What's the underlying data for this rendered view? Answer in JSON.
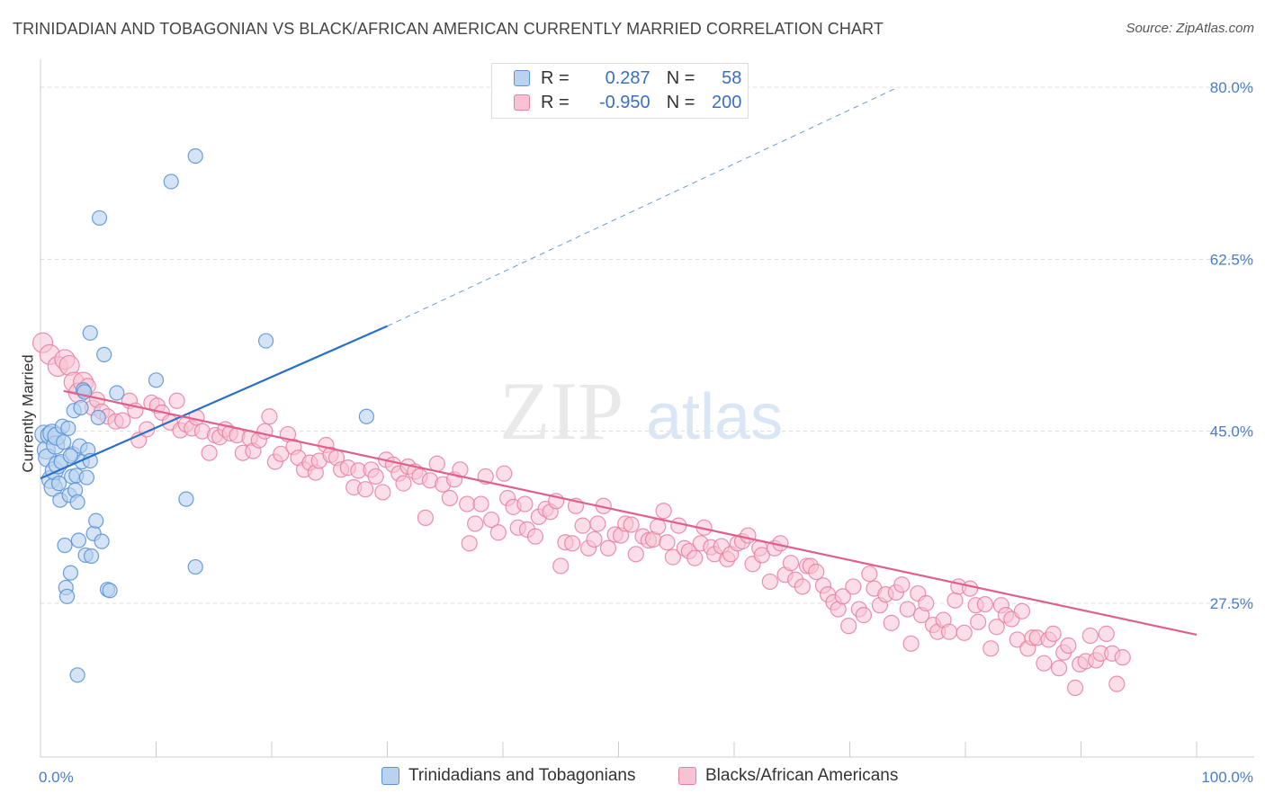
{
  "header": {
    "title": "TRINIDADIAN AND TOBAGONIAN VS BLACK/AFRICAN AMERICAN CURRENTLY MARRIED CORRELATION CHART",
    "source": "Source: ZipAtlas.com"
  },
  "watermark": {
    "part1": "ZIP",
    "part2": "atlas"
  },
  "legend": {
    "rows": [
      {
        "r_label": "R =",
        "r_value": "0.287",
        "n_label": "N =",
        "n_value": "58"
      },
      {
        "r_label": "R =",
        "r_value": "-0.950",
        "n_label": "N =",
        "n_value": "200"
      }
    ]
  },
  "colors": {
    "blue_fill": "#b8d2f0",
    "blue_stroke": "#5b93d6",
    "blue_line": "#2a6fc9",
    "pink_fill": "#f7c3d3",
    "pink_stroke": "#e87ea0",
    "pink_line": "#e0608c",
    "tick_text": "#4a7cc8",
    "grid": "#dcdcdc"
  },
  "chart_data": {
    "type": "scatter",
    "title": "TRINIDADIAN AND TOBAGONIAN VS BLACK/AFRICAN AMERICAN CURRENTLY MARRIED CORRELATION CHART",
    "xlabel": "",
    "ylabel": "Currently Married",
    "xlim": [
      0,
      100
    ],
    "ylim": [
      10,
      82
    ],
    "x_tick_labels": [
      "0.0%",
      "100.0%"
    ],
    "y_ticks": [
      27.5,
      45.0,
      62.5,
      80.0
    ],
    "y_tick_labels": [
      "27.5%",
      "45.0%",
      "62.5%",
      "80.0%"
    ],
    "grid": true,
    "legend_position": "top-center",
    "series": [
      {
        "name": "Trinidadians and Tobagonians",
        "r": 0.287,
        "n": 58,
        "trend": {
          "x0": 0,
          "y0": 40.2,
          "x1": 30,
          "y1": 55.7,
          "x_extend": 74,
          "y_extend": 79.9
        },
        "points": [
          [
            0.3,
            44.7
          ],
          [
            0.5,
            43.1
          ],
          [
            0.6,
            42.3
          ],
          [
            0.8,
            44.6
          ],
          [
            0.9,
            40.1
          ],
          [
            1.0,
            44.8
          ],
          [
            1.1,
            39.3
          ],
          [
            1.2,
            41.0
          ],
          [
            1.3,
            43.6
          ],
          [
            1.4,
            44.5
          ],
          [
            1.5,
            41.6
          ],
          [
            1.6,
            39.7
          ],
          [
            1.7,
            38.0
          ],
          [
            1.9,
            45.5
          ],
          [
            2.0,
            43.9
          ],
          [
            2.1,
            33.4
          ],
          [
            2.2,
            29.1
          ],
          [
            2.3,
            28.2
          ],
          [
            2.4,
            45.3
          ],
          [
            2.5,
            38.5
          ],
          [
            2.6,
            30.6
          ],
          [
            2.7,
            40.4
          ],
          [
            2.8,
            42.7
          ],
          [
            2.9,
            47.1
          ],
          [
            3.0,
            39.0
          ],
          [
            3.1,
            40.5
          ],
          [
            3.2,
            37.8
          ],
          [
            3.3,
            33.9
          ],
          [
            3.4,
            43.5
          ],
          [
            3.5,
            47.4
          ],
          [
            3.6,
            41.9
          ],
          [
            3.7,
            49.2
          ],
          [
            3.9,
            32.4
          ],
          [
            4.0,
            40.3
          ],
          [
            4.1,
            43.1
          ],
          [
            4.3,
            42.0
          ],
          [
            4.4,
            32.3
          ],
          [
            4.6,
            34.6
          ],
          [
            4.8,
            35.9
          ],
          [
            5.0,
            46.4
          ],
          [
            5.1,
            66.7
          ],
          [
            5.3,
            33.8
          ],
          [
            5.5,
            52.8
          ],
          [
            5.8,
            28.9
          ],
          [
            6.0,
            28.8
          ],
          [
            6.6,
            48.9
          ],
          [
            10.0,
            50.2
          ],
          [
            11.3,
            70.4
          ],
          [
            12.6,
            38.1
          ],
          [
            13.4,
            31.2
          ],
          [
            13.4,
            73.0
          ],
          [
            19.5,
            54.2
          ],
          [
            28.2,
            46.5
          ],
          [
            3.2,
            20.2
          ],
          [
            4.3,
            55.0
          ],
          [
            1.8,
            41.9
          ],
          [
            2.6,
            42.5
          ],
          [
            3.8,
            49.0
          ]
        ]
      },
      {
        "name": "Blacks/African Americans",
        "r": -0.95,
        "n": 200,
        "trend": {
          "x0": 2,
          "y0": 49.1,
          "x1": 100,
          "y1": 24.3
        },
        "points": [
          [
            0.2,
            54.0
          ],
          [
            0.8,
            52.8
          ],
          [
            1.5,
            51.6
          ],
          [
            2.1,
            52.3
          ],
          [
            2.5,
            51.7
          ],
          [
            2.9,
            50.0
          ],
          [
            3.3,
            48.9
          ],
          [
            3.7,
            50.0
          ],
          [
            4.1,
            49.6
          ],
          [
            4.5,
            47.4
          ],
          [
            4.9,
            48.2
          ],
          [
            5.3,
            47.0
          ],
          [
            5.8,
            46.5
          ],
          [
            6.5,
            46.0
          ],
          [
            7.1,
            46.1
          ],
          [
            7.7,
            48.1
          ],
          [
            8.2,
            47.1
          ],
          [
            8.5,
            44.1
          ],
          [
            9.2,
            45.2
          ],
          [
            9.6,
            47.9
          ],
          [
            10.1,
            47.6
          ],
          [
            10.5,
            46.9
          ],
          [
            11.2,
            45.9
          ],
          [
            11.8,
            48.1
          ],
          [
            12.1,
            45.1
          ],
          [
            12.6,
            45.7
          ],
          [
            13.1,
            45.3
          ],
          [
            13.5,
            46.4
          ],
          [
            14.0,
            45.0
          ],
          [
            14.6,
            42.8
          ],
          [
            15.1,
            44.6
          ],
          [
            15.5,
            44.4
          ],
          [
            16.0,
            45.2
          ],
          [
            16.4,
            44.8
          ],
          [
            17.0,
            44.6
          ],
          [
            17.5,
            42.8
          ],
          [
            18.1,
            44.3
          ],
          [
            18.4,
            43.0
          ],
          [
            18.9,
            44.1
          ],
          [
            19.4,
            45.0
          ],
          [
            19.8,
            46.5
          ],
          [
            20.3,
            41.9
          ],
          [
            20.8,
            42.7
          ],
          [
            21.4,
            44.7
          ],
          [
            21.9,
            43.4
          ],
          [
            22.3,
            42.3
          ],
          [
            22.8,
            41.1
          ],
          [
            23.3,
            41.8
          ],
          [
            23.8,
            40.8
          ],
          [
            24.1,
            42.0
          ],
          [
            24.7,
            43.6
          ],
          [
            25.1,
            42.6
          ],
          [
            25.6,
            42.3
          ],
          [
            26.0,
            41.1
          ],
          [
            26.6,
            41.3
          ],
          [
            27.1,
            39.3
          ],
          [
            27.5,
            41.0
          ],
          [
            28.1,
            39.1
          ],
          [
            28.6,
            41.1
          ],
          [
            29.0,
            40.4
          ],
          [
            29.6,
            38.8
          ],
          [
            29.9,
            42.1
          ],
          [
            30.5,
            41.6
          ],
          [
            31.0,
            40.7
          ],
          [
            31.4,
            39.7
          ],
          [
            31.8,
            41.4
          ],
          [
            32.4,
            40.9
          ],
          [
            32.8,
            40.4
          ],
          [
            33.3,
            36.2
          ],
          [
            33.7,
            40.0
          ],
          [
            34.3,
            41.7
          ],
          [
            34.8,
            39.6
          ],
          [
            35.4,
            38.2
          ],
          [
            35.8,
            40.1
          ],
          [
            36.3,
            41.1
          ],
          [
            36.9,
            37.6
          ],
          [
            37.1,
            33.6
          ],
          [
            37.6,
            35.6
          ],
          [
            38.1,
            37.6
          ],
          [
            38.5,
            40.4
          ],
          [
            39.0,
            36.0
          ],
          [
            39.6,
            34.7
          ],
          [
            40.1,
            40.7
          ],
          [
            40.4,
            38.2
          ],
          [
            40.9,
            37.3
          ],
          [
            41.3,
            35.2
          ],
          [
            41.9,
            37.6
          ],
          [
            42.1,
            35.0
          ],
          [
            42.8,
            34.3
          ],
          [
            43.1,
            36.3
          ],
          [
            43.7,
            37.1
          ],
          [
            44.1,
            36.8
          ],
          [
            44.6,
            37.9
          ],
          [
            45.0,
            31.3
          ],
          [
            45.4,
            33.7
          ],
          [
            46.0,
            33.6
          ],
          [
            46.3,
            37.4
          ],
          [
            46.9,
            35.4
          ],
          [
            47.4,
            33.1
          ],
          [
            47.9,
            34.0
          ],
          [
            48.2,
            35.6
          ],
          [
            48.7,
            37.4
          ],
          [
            49.1,
            33.1
          ],
          [
            49.7,
            34.5
          ],
          [
            50.2,
            34.4
          ],
          [
            50.6,
            35.6
          ],
          [
            51.1,
            35.5
          ],
          [
            51.5,
            32.5
          ],
          [
            52.1,
            34.3
          ],
          [
            52.6,
            33.9
          ],
          [
            53.0,
            34.0
          ],
          [
            53.4,
            35.3
          ],
          [
            53.9,
            36.9
          ],
          [
            54.2,
            33.7
          ],
          [
            54.7,
            32.2
          ],
          [
            55.2,
            35.4
          ],
          [
            55.7,
            33.1
          ],
          [
            56.1,
            32.8
          ],
          [
            56.6,
            32.1
          ],
          [
            57.1,
            33.6
          ],
          [
            57.4,
            35.2
          ],
          [
            58.0,
            33.2
          ],
          [
            58.3,
            32.5
          ],
          [
            58.9,
            33.3
          ],
          [
            59.4,
            32.0
          ],
          [
            59.7,
            32.5
          ],
          [
            60.3,
            33.6
          ],
          [
            60.7,
            33.8
          ],
          [
            61.2,
            34.4
          ],
          [
            61.6,
            31.5
          ],
          [
            62.2,
            33.1
          ],
          [
            62.4,
            32.4
          ],
          [
            63.1,
            29.7
          ],
          [
            63.5,
            33.1
          ],
          [
            64.0,
            33.6
          ],
          [
            64.4,
            30.4
          ],
          [
            64.9,
            31.6
          ],
          [
            65.3,
            29.9
          ],
          [
            65.9,
            29.2
          ],
          [
            66.3,
            31.3
          ],
          [
            66.6,
            31.3
          ],
          [
            67.1,
            30.7
          ],
          [
            67.7,
            29.3
          ],
          [
            68.1,
            28.4
          ],
          [
            68.6,
            27.6
          ],
          [
            69.0,
            26.9
          ],
          [
            69.4,
            28.2
          ],
          [
            69.9,
            25.2
          ],
          [
            70.3,
            29.2
          ],
          [
            70.8,
            26.9
          ],
          [
            71.2,
            26.3
          ],
          [
            71.7,
            30.5
          ],
          [
            72.1,
            29.0
          ],
          [
            72.6,
            27.3
          ],
          [
            73.1,
            28.4
          ],
          [
            73.6,
            25.5
          ],
          [
            74.0,
            28.6
          ],
          [
            74.5,
            29.4
          ],
          [
            75.0,
            26.9
          ],
          [
            75.3,
            23.4
          ],
          [
            75.9,
            28.5
          ],
          [
            76.2,
            26.3
          ],
          [
            76.6,
            27.5
          ],
          [
            77.2,
            25.3
          ],
          [
            77.6,
            24.6
          ],
          [
            78.1,
            25.8
          ],
          [
            78.6,
            24.6
          ],
          [
            79.1,
            27.8
          ],
          [
            79.4,
            29.2
          ],
          [
            79.9,
            24.5
          ],
          [
            80.4,
            29.0
          ],
          [
            80.9,
            27.3
          ],
          [
            81.1,
            25.6
          ],
          [
            81.7,
            27.4
          ],
          [
            82.2,
            22.9
          ],
          [
            82.7,
            25.1
          ],
          [
            83.1,
            27.3
          ],
          [
            83.5,
            26.3
          ],
          [
            84.0,
            25.9
          ],
          [
            84.5,
            23.8
          ],
          [
            84.9,
            26.7
          ],
          [
            85.4,
            22.9
          ],
          [
            85.8,
            24.0
          ],
          [
            86.2,
            24.0
          ],
          [
            86.8,
            21.4
          ],
          [
            87.2,
            23.8
          ],
          [
            87.6,
            24.4
          ],
          [
            88.1,
            20.9
          ],
          [
            88.5,
            22.5
          ],
          [
            88.9,
            23.2
          ],
          [
            89.5,
            18.9
          ],
          [
            89.9,
            21.3
          ],
          [
            90.4,
            21.6
          ],
          [
            90.8,
            24.2
          ],
          [
            91.3,
            21.7
          ],
          [
            91.7,
            22.4
          ],
          [
            92.2,
            24.4
          ],
          [
            92.7,
            22.4
          ],
          [
            93.1,
            19.3
          ],
          [
            93.6,
            22.0
          ]
        ]
      }
    ]
  },
  "bottom_legend": {
    "items": [
      {
        "label": "Trinidadians and Tobagonians"
      },
      {
        "label": "Blacks/African Americans"
      }
    ]
  }
}
